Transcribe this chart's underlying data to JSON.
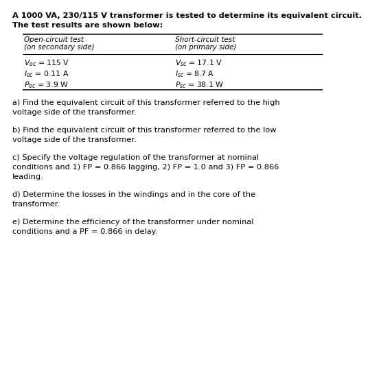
{
  "title_line1": "A 1000 VA, 230/115 V transformer is tested to determine its equivalent circuit.",
  "title_line2": "The test results are shown below:",
  "col1_header1": "Open-circuit test",
  "col1_header2": "(on secondary side)",
  "col2_header1": "Short-circuit test",
  "col2_header2": "(on primary side)",
  "col1_row1": "$V_{oc}$ = 115 V",
  "col1_row2": "$I_{oc}$ = 0.11 A",
  "col1_row3": "$P_{oc}$ = 3.9 W",
  "col2_row1": "$V_{sc}$ = 17.1 V",
  "col2_row2": "$I_{sc}$ = 8.7 A",
  "col2_row3": "$P_{sc}$ = 38.1 W",
  "part_a_1": "a) Find the equivalent circuit of this transformer referred to the high",
  "part_a_2": "voltage side of the transformer.",
  "part_b_1": "b) Find the equivalent circuit of this transformer referred to the low",
  "part_b_2": "voltage side of the transformer.",
  "part_c_1": "c) Specify the voltage regulation of the transformer at nominal",
  "part_c_2": "conditions and 1) FP = 0.866 lagging, 2) FP = 1.0 and 3) FP = 0.866",
  "part_c_3": "leading.",
  "part_d_1": "d) Determine the losses in the windings and in the core of the",
  "part_d_2": "transformer.",
  "part_e_1": "e) Determine the efficiency of the transformer under nominal",
  "part_e_2": "conditions and a PF = 0.866 in delay.",
  "bg_color": "#ffffff",
  "text_color": "#000000",
  "font_size_title": 8.2,
  "font_size_body": 8.2,
  "font_size_table_header": 7.5,
  "font_size_table_data": 7.8
}
